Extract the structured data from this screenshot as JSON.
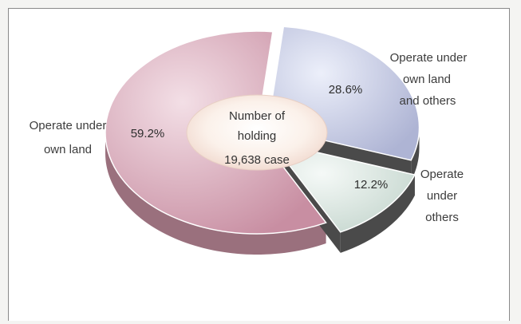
{
  "chart_data": {
    "type": "pie",
    "title": "",
    "center_label": {
      "line1": "Number of",
      "line2": "holding",
      "line3": "19,638 case"
    },
    "slices": [
      {
        "label_lines": [
          "Operate under",
          "own land"
        ],
        "value": 59.2,
        "value_label": "59.2%",
        "top_color": "#d4a6b5",
        "side_color": "#9a707d"
      },
      {
        "label_lines": [
          "Operate under",
          "own land",
          "and others"
        ],
        "value": 28.6,
        "value_label": "28.6%",
        "top_color": "#c6cbe0",
        "side_color": "#4a4a4a"
      },
      {
        "label_lines": [
          "Operate",
          "under",
          "others"
        ],
        "value": 12.2,
        "value_label": "12.2%",
        "top_color": "#d7e3dd",
        "side_color": "#4a4a4a"
      }
    ]
  }
}
